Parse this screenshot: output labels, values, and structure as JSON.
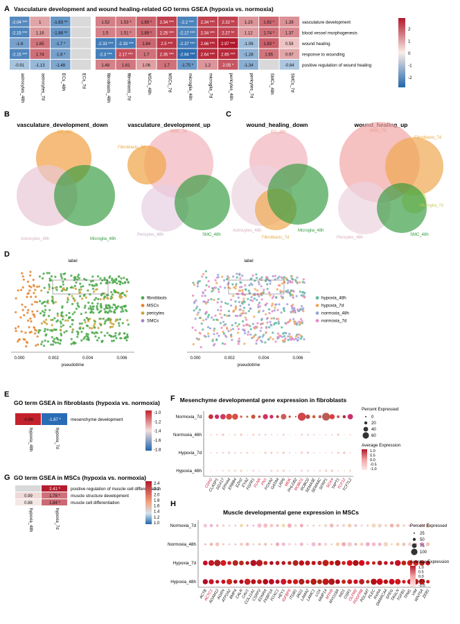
{
  "panel_letters": [
    "A",
    "B",
    "C",
    "D",
    "E",
    "F",
    "G",
    "H"
  ],
  "chart_data": [
    {
      "id": "A",
      "type": "heatmap",
      "title": "Vasculature development and wound healing-related GO terms GSEA (hypoxia vs. normoxia)",
      "columns": [
        "astrocytes_48h",
        "astrocytes_7d",
        "ECs_48h",
        "ECs_7d",
        "fibroblasts_48h",
        "fibroblasts_7d",
        "MSCs_48h",
        "MSCs_7d",
        "microglia_48h",
        "microglia_7d",
        "pericytes_48h",
        "pericytes_7d",
        "SMCs_48h",
        "SMCs_7d"
      ],
      "gap_after": [
        4
      ],
      "rows": [
        "vasculature development",
        "blood vessel morphogenesis",
        "wound healing",
        "response to wounding",
        "positive regulation of wound healing"
      ],
      "values": [
        [
          -2.04,
          1,
          -1.83,
          null,
          1.52,
          1.53,
          1.89,
          2.34,
          -2.2,
          2.34,
          2.32,
          1.23,
          1.82,
          1.28
        ],
        [
          -2.15,
          1.16,
          -1.86,
          null,
          1.5,
          1.51,
          1.89,
          2.25,
          -2.17,
          2.34,
          2.27,
          1.12,
          1.74,
          1.37
        ],
        [
          -1.6,
          1.65,
          -1.7,
          null,
          -2.33,
          -2.33,
          1.84,
          2.5,
          -2.37,
          2.66,
          2.97,
          -1.06,
          1.93,
          0.58
        ],
        [
          -2.15,
          1.74,
          -1.6,
          null,
          -2.3,
          2.17,
          1.7,
          2.35,
          -2.64,
          2.64,
          2.65,
          -1.28,
          1.65,
          0.97
        ],
        [
          -0.91,
          -1.13,
          -1.48,
          null,
          1.48,
          1.61,
          1.06,
          1.7,
          -1.75,
          1.2,
          2.05,
          -1.34,
          null,
          -0.84
        ]
      ],
      "labels": [
        [
          "-2.04 ***",
          "1",
          "-1.83 **",
          "",
          "1.52",
          "1.53 *",
          "1.89 *",
          "2.34 ***",
          "-2.2 ***",
          "2.34 ***",
          "2.32 **",
          "1.23",
          "1.82 *",
          "1.28"
        ],
        [
          "-2.15 ***",
          "1.16",
          "-1.86 **",
          "",
          "1.5",
          "1.51 *",
          "1.89 *",
          "2.25 ***",
          "-2.17 ***",
          "2.34 ***",
          "2.27 **",
          "1.12",
          "1.74 *",
          "1.37"
        ],
        [
          "-1.6",
          "1.65",
          "-1.7 *",
          "",
          "-2.33 ***",
          "-2.33 ***",
          "1.84",
          "2.5 ***",
          "-2.37 ***",
          "2.66 ***",
          "2.97 ***",
          "-1.06",
          "1.93 *",
          "0.58"
        ],
        [
          "-2.15 ***",
          "1.74",
          "-1.6 *",
          "",
          "-2.3 ***",
          "2.17 ***",
          "1.7",
          "2.35 ***",
          "-2.64 ***",
          "2.64 ***",
          "2.65 ***",
          "-1.28",
          "1.65",
          "0.97"
        ],
        [
          "-0.91",
          "-1.13",
          "-1.48",
          "",
          "1.48",
          "1.61",
          "1.06",
          "1.7",
          "-1.75 *",
          "1.2",
          "2.05 *",
          "-1.34",
          "",
          "-0.84"
        ]
      ],
      "legend_ticks": [
        "2",
        "1",
        "0",
        "-1",
        "-2"
      ],
      "range": [
        -2.8,
        2.9
      ]
    },
    {
      "id": "E",
      "type": "heatmap",
      "title": "GO term GSEA in fibroblasts (hypoxia vs. normoxia)",
      "columns": [
        "hypoxia_48h",
        "hypoxia_7d"
      ],
      "rows": [
        "mesenchyme development"
      ],
      "values": [
        [
          -0.86,
          -1.87
        ]
      ],
      "labels": [
        [
          "-0.86",
          "-1.87 *"
        ]
      ],
      "legend_ticks": [
        "-1.0",
        "-1.2",
        "-1.4",
        "-1.6",
        "-1.8"
      ],
      "range": [
        -1.9,
        -0.85
      ]
    },
    {
      "id": "G",
      "type": "heatmap",
      "title": "GO term GSEA in MSCs (hypoxia vs. normoxia)",
      "columns": [
        "hypoxia_48h",
        "hypoxia_7d"
      ],
      "rows": [
        "positive regulation of muscle cell differentiation",
        "muscle structure development",
        "muscle cell differentiation"
      ],
      "values": [
        [
          null,
          2.41
        ],
        [
          0.99,
          1.78
        ],
        [
          0.88,
          1.84
        ]
      ],
      "labels": [
        [
          "",
          "2.41 *"
        ],
        [
          "0.99",
          "1.78 *"
        ],
        [
          "0.88",
          "1.84 *"
        ]
      ],
      "legend_ticks": [
        "2.4",
        "2.2",
        "2.0",
        "1.8",
        "1.6",
        "1.4",
        "1.2",
        "1.0"
      ],
      "range": [
        0.85,
        2.45
      ]
    },
    {
      "id": "F",
      "type": "scatter",
      "title": "Mesenchyme developmental gene expression in fibroblasts",
      "rows": [
        "Normoxia_7d",
        "Normoxia_48h",
        "Hypoxia_7d",
        "Hypoxia_48h"
      ],
      "genes": [
        "CDH2",
        "CLASP1",
        "DDX17",
        "EPHA4",
        "ERBB4",
        "EZH2",
        "EYA2",
        "FGFR1",
        "FLNA",
        "FN1",
        "FOXA2",
        "GATA4",
        "LRP6",
        "MDK",
        "PHLDB2",
        "ROBO1",
        "ROBO2",
        "SEMA3E",
        "SEMA4C",
        "SFRP1",
        "SOX4",
        "TAPT1",
        "TCF12",
        "TCF7L2"
      ],
      "red_genes": [
        "CDH2",
        "FLNA",
        "FN1",
        "ITGB1",
        "MDK",
        "ROBO1",
        "SOX4",
        "TCF12"
      ],
      "size_legend_title": "Percent Expressed",
      "size_legend": [
        "0",
        "20",
        "40",
        "60"
      ],
      "color_legend_title": "Average Expression",
      "color_legend": [
        "1.0",
        "0.5",
        "0.0",
        "-0.5",
        "-1.0"
      ]
    },
    {
      "id": "H",
      "type": "scatter",
      "title": "Muscle developmental gene expression in MSCs",
      "rows": [
        "Normoxia_7d",
        "Normoxia_48h",
        "Hypoxia_7d",
        "Hypoxia_48h"
      ],
      "genes": [
        "ACTB",
        "ACTC1",
        "ADAM12",
        "AGRN",
        "ATP2A2",
        "BMP4",
        "CALR",
        "CAV1",
        "COL11A1",
        "CSRP2",
        "EDNRA",
        "FKBP1A",
        "FOXC1",
        "HEY1",
        "IGFBP5",
        "ITGB1",
        "JAG1",
        "LAMA2",
        "LAMC1",
        "LOX",
        "MMP14",
        "MYH9",
        "MYO18A",
        "NID1",
        "OSR1",
        "OLFM2",
        "PDGFRB",
        "PDLIM7",
        "PLEC",
        "RXRA",
        "SMARCA4",
        "SPEG",
        "TAGLN",
        "TGFB1",
        "TPM1",
        "VIM",
        "WNT5A",
        "ZEB1"
      ],
      "red_genes": [
        "ACTC1",
        "IGFBP5",
        "MYH9",
        "OLFM2",
        "PDGFRB",
        "SOX4"
      ],
      "size_legend_title": "Percent Expressed",
      "size_legend": [
        "25",
        "50",
        "75",
        "100"
      ],
      "color_legend_title": "Average Expression",
      "color_legend": [
        "1.0",
        "0.5",
        "0.0",
        "-0.5",
        "-1.0"
      ]
    },
    {
      "id": "D",
      "type": "scatter",
      "plots": [
        {
          "title": "label",
          "legend": [
            "fibroblasts",
            "MSCs",
            "pericytes",
            "SMCs"
          ],
          "colors": [
            "#4aa84a",
            "#e8812a",
            "#c9a23a",
            "#9b88c8"
          ]
        },
        {
          "title": "label",
          "legend": [
            "hypoxia_48h",
            "hypoxia_7d",
            "normoxia_48h",
            "normoxia_7d"
          ],
          "colors": [
            "#5fb9a0",
            "#f0a860",
            "#9aa3d8",
            "#e58ac7"
          ]
        }
      ],
      "xlabel": "pseudotime",
      "x_ticks": [
        "0.000",
        "0.002",
        "0.004",
        "0.006"
      ]
    }
  ],
  "venns": {
    "B1": {
      "title": "vasculature_development_down",
      "sets": [
        "EC_48h",
        "Astrocytes_48h",
        "Microglia_48h"
      ]
    },
    "B2": {
      "title": "vasculature_development_up",
      "sets": [
        "MSC_7d",
        "Fibroblasts_7d",
        "Pericytes_48h",
        "SMC_48h"
      ]
    },
    "C1": {
      "title": "wound_healing_down",
      "sets": [
        "EC_48h",
        "Astrocytes_48h",
        "Fibroblasts_7d",
        "Microglia_48h"
      ]
    },
    "C2": {
      "title": "wound_healing_up",
      "sets": [
        "MSC_7d",
        "Fibroblasts_7d",
        "Microglia_7d",
        "Pericytes_48h",
        "SMC_48h"
      ]
    }
  }
}
